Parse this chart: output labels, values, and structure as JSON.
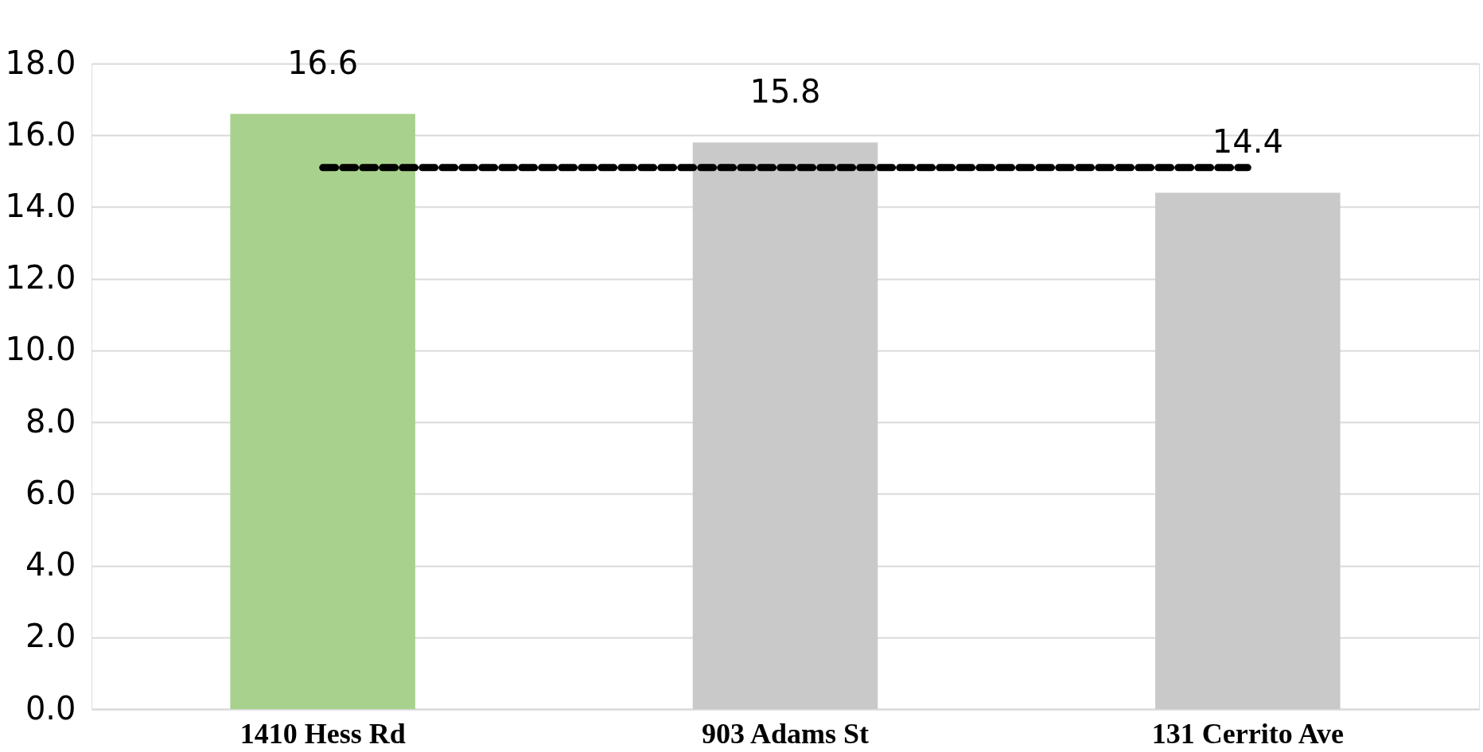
{
  "chart_data": {
    "type": "bar",
    "categories": [
      "1410 Hess Rd",
      "903 Adams St",
      "131 Cerrito Ave"
    ],
    "series": [
      {
        "colors": [
          "#a9d18e",
          "#c9c9c9",
          "#c9c9c9"
        ],
        "values": [
          16.6,
          15.8,
          14.4
        ],
        "value_labels": [
          "16.6",
          "15.8",
          "14.4"
        ]
      },
      {
        "type": "line",
        "color": "#000000",
        "line_style": "dashed",
        "values": [
          15.1,
          15.1,
          15.1
        ]
      }
    ],
    "ylim": [
      0,
      18
    ],
    "yticks": [
      {
        "value": 0,
        "label": "0.0"
      },
      {
        "value": 2,
        "label": "2.0"
      },
      {
        "value": 4,
        "label": "4.0"
      },
      {
        "value": 6,
        "label": "6.0"
      },
      {
        "value": 8,
        "label": "8.0"
      },
      {
        "value": 10,
        "label": "10.0"
      },
      {
        "value": 12,
        "label": "12.0"
      },
      {
        "value": 14,
        "label": "14.0"
      },
      {
        "value": 16,
        "label": "16.0"
      },
      {
        "value": 18,
        "label": "18.0"
      }
    ],
    "grid": "y"
  }
}
